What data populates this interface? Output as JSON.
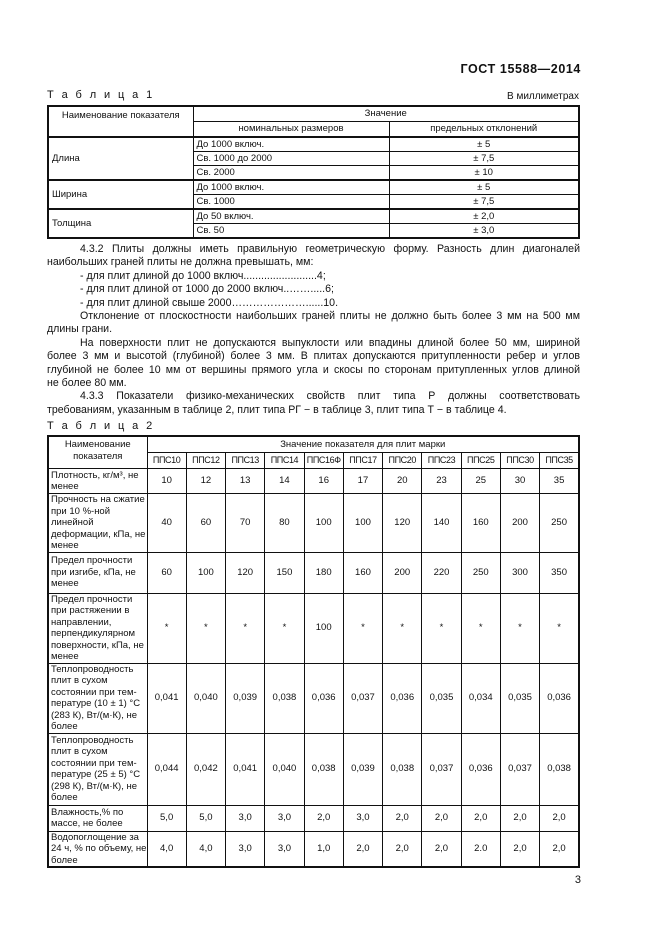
{
  "header": {
    "standard": "ГОСТ 15588—2014"
  },
  "table1": {
    "caption": "Т а б л и ц а  1",
    "unit": "В миллиметрах",
    "head": {
      "name": "Наименование показателя",
      "value": "Значение",
      "nominal": "номинальных размеров",
      "deviation": "предельных отклонений"
    },
    "groups": [
      {
        "name": "Длина",
        "rows": [
          [
            "До  1000  включ.",
            "± 5"
          ],
          [
            "Св.  1000   до    2000",
            "± 7,5"
          ],
          [
            "Св.   2000",
            "± 10"
          ]
        ]
      },
      {
        "name": "Ширина",
        "rows": [
          [
            "До  1000  включ.",
            "± 5"
          ],
          [
            "Св. 1000",
            "± 7,5"
          ]
        ]
      },
      {
        "name": "Толщина",
        "rows": [
          [
            "До  50  включ.",
            "± 2,0"
          ],
          [
            "Св. 50",
            "± 3,0"
          ]
        ]
      }
    ]
  },
  "text": {
    "lines": [
      {
        "t": "4.3.2 Плиты должны иметь правильную геометрическую форму. Разность длин диагоналей",
        "ind": true,
        "j": true
      },
      {
        "t": "наибольших граней плиты не должна превышать, мм:",
        "ind": false,
        "j": false
      },
      {
        "t": "- для плит длиной до  1000 включ.........................4;",
        "ind": true,
        "j": false
      },
      {
        "t": "- для плит длиной  от 1000 до 2000 включ..…….....6;",
        "ind": true,
        "j": false
      },
      {
        "t": "- для плит длиной свыше  2000…………………......10.",
        "ind": true,
        "j": false
      },
      {
        "t": "Отклонение от плоскостности наибольших граней плиты не должно быть более 3 мм на 500 мм",
        "ind": true,
        "j": true
      },
      {
        "t": "длины грани.",
        "ind": false,
        "j": false
      },
      {
        "t": "На поверхности плит не допускаются выпуклости или впадины длиной более 50 мм, шириной",
        "ind": true,
        "j": true
      },
      {
        "t": "более 3 мм и высотой (глубиной) более 3 мм. В плитах допускаются притупленности ребер и углов",
        "ind": false,
        "j": true
      },
      {
        "t": "глубиной не более 10 мм от вершины прямого угла и скосы по сторонам притупленных углов длиной",
        "ind": false,
        "j": true
      },
      {
        "t": "не более 80 мм.",
        "ind": false,
        "j": false
      },
      {
        "t": "4.3.3 Показатели физико-механических свойств плит типа Р должны соответствовать",
        "ind": true,
        "j": true
      },
      {
        "t": "требованиям, указанным в таблице 2, плит типа РГ − в таблице 3, плит типа Т − в таблице 4.",
        "ind": false,
        "j": false
      }
    ]
  },
  "table2": {
    "caption": "Т а б л и ц а  2",
    "head": {
      "name": "Наименование показателя",
      "value": "Значение показателя для плит марки"
    },
    "brands": [
      "ППС10",
      "ППС12",
      "ППС13",
      "ППС14",
      "ППС16Ф",
      "ППС17",
      "ППС20",
      "ППС23",
      "ППС25",
      "ППС30",
      "ППС35"
    ],
    "rows": [
      {
        "label": "Плотность, кг/м³, не менее",
        "values": [
          "10",
          "12",
          "13",
          "14",
          "16",
          "17",
          "20",
          "23",
          "25",
          "30",
          "35"
        ]
      },
      {
        "label": "Прочность на сжатие при 10 %-ной линейной деформации, кПа, не менее",
        "values": [
          "40",
          "60",
          "70",
          "80",
          "100",
          "100",
          "120",
          "140",
          "160",
          "200",
          "250"
        ]
      },
      {
        "label": "Предел прочности при изгибе, кПа, не менее",
        "values": [
          "60",
          "100",
          "120",
          "150",
          "180",
          "160",
          "200",
          "220",
          "250",
          "300",
          "350"
        ]
      },
      {
        "label": "Предел прочности при растяжении в направлении, перпендикулярном поверхности, кПа, не менее",
        "values": [
          "*",
          "*",
          "*",
          "*",
          "100",
          "*",
          "*",
          "*",
          "*",
          "*",
          "*"
        ]
      },
      {
        "label": "Теплопроводность плит в сухом состоянии при тем-пературе (10 ± 1) °С (283 К), Вт/(м·К), не более",
        "values": [
          "0,041",
          "0,040",
          "0,039",
          "0,038",
          "0,036",
          "0,037",
          "0,036",
          "0,035",
          "0,034",
          "0,035",
          "0,036"
        ]
      },
      {
        "label": "Теплопроводность плит в сухом состоянии при тем-пературе (25 ± 5) °С (298 К), Вт/(м·К), не более",
        "values": [
          "0,044",
          "0,042",
          "0,041",
          "0,040",
          "0,038",
          "0,039",
          "0,038",
          "0,037",
          "0,036",
          "0,037",
          "0,038"
        ]
      },
      {
        "label": "Влажность,% по массе, не более",
        "values": [
          "5,0",
          "5,0",
          "3,0",
          "3,0",
          "2,0",
          "3,0",
          "2,0",
          "2,0",
          "2,0",
          "2,0",
          "2,0"
        ]
      },
      {
        "label": "Водопоглощение за 24 ч, % по объему, не более",
        "values": [
          "4,0",
          "4,0",
          "3,0",
          "3,0",
          "1,0",
          "2,0",
          "2,0",
          "2,0",
          "2.0",
          "2,0",
          "2,0"
        ]
      }
    ]
  },
  "footer": {
    "page_number": "3"
  }
}
